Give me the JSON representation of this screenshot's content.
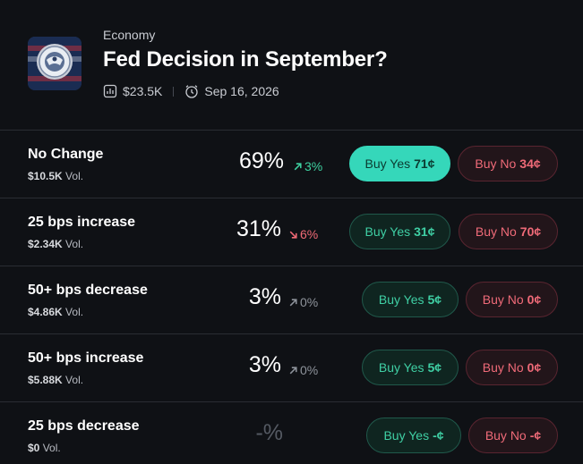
{
  "market": {
    "category": "Economy",
    "title": "Fed Decision in September?",
    "volume": "$23.5K",
    "date": "Sep 16, 2026"
  },
  "outcomes": [
    {
      "name": "No Change",
      "vol_amount": "$10.5K",
      "vol_label": "Vol.",
      "pct": "69%",
      "change": "3%",
      "direction": "up",
      "yes_label": "Buy Yes",
      "yes_price": "71¢",
      "no_label": "Buy No",
      "no_price": "34¢"
    },
    {
      "name": "25 bps increase",
      "vol_amount": "$2.34K",
      "vol_label": "Vol.",
      "pct": "31%",
      "change": "6%",
      "direction": "down",
      "yes_label": "Buy Yes",
      "yes_price": "31¢",
      "no_label": "Buy No",
      "no_price": "70¢"
    },
    {
      "name": "50+ bps decrease",
      "vol_amount": "$4.86K",
      "vol_label": "Vol.",
      "pct": "3%",
      "change": "0%",
      "direction": "flat",
      "yes_label": "Buy Yes",
      "yes_price": "5¢",
      "no_label": "Buy No",
      "no_price": "0¢"
    },
    {
      "name": "50+ bps increase",
      "vol_amount": "$5.88K",
      "vol_label": "Vol.",
      "pct": "3%",
      "change": "0%",
      "direction": "flat",
      "yes_label": "Buy Yes",
      "yes_price": "5¢",
      "no_label": "Buy No",
      "no_price": "0¢"
    },
    {
      "name": "25 bps decrease",
      "vol_amount": "$0",
      "vol_label": "Vol.",
      "pct": "-%",
      "change": "",
      "direction": "none",
      "yes_label": "Buy Yes",
      "yes_price": "-¢",
      "no_label": "Buy No",
      "no_price": "-¢"
    }
  ],
  "colors": {
    "background": "#0f1115",
    "yes_accent": "#35d7ba",
    "no_accent": "#ef6a78",
    "up": "#3ed1a0",
    "down": "#f06a76"
  },
  "icons": {
    "logo": "federal-reserve-seal-icon",
    "volume": "bar-chart-icon",
    "date": "alarm-clock-icon"
  }
}
